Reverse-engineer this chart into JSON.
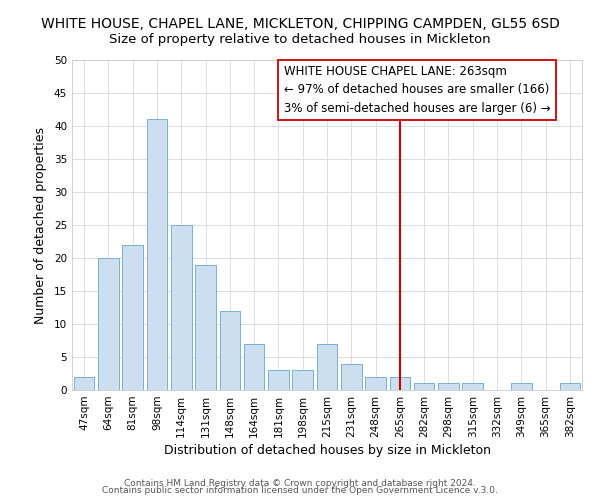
{
  "title": "WHITE HOUSE, CHAPEL LANE, MICKLETON, CHIPPING CAMPDEN, GL55 6SD",
  "subtitle": "Size of property relative to detached houses in Mickleton",
  "xlabel": "Distribution of detached houses by size in Mickleton",
  "ylabel": "Number of detached properties",
  "bar_values": [
    2,
    20,
    22,
    41,
    25,
    19,
    12,
    7,
    3,
    3,
    7,
    4,
    2,
    2,
    1,
    1,
    1,
    0,
    1,
    0,
    1
  ],
  "bin_labels": [
    "47sqm",
    "64sqm",
    "81sqm",
    "98sqm",
    "114sqm",
    "131sqm",
    "148sqm",
    "164sqm",
    "181sqm",
    "198sqm",
    "215sqm",
    "231sqm",
    "248sqm",
    "265sqm",
    "282sqm",
    "298sqm",
    "315sqm",
    "332sqm",
    "349sqm",
    "365sqm",
    "382sqm"
  ],
  "bar_color": "#ccdff0",
  "bar_edge_color": "#7aafd4",
  "ylim": [
    0,
    50
  ],
  "yticks": [
    0,
    5,
    10,
    15,
    20,
    25,
    30,
    35,
    40,
    45,
    50
  ],
  "red_line_index": 13,
  "red_line_color": "#cc0000",
  "legend_title": "WHITE HOUSE CHAPEL LANE: 263sqm",
  "legend_line1": "← 97% of detached houses are smaller (166)",
  "legend_line2": "3% of semi-detached houses are larger (6) →",
  "footer_line1": "Contains HM Land Registry data © Crown copyright and database right 2024.",
  "footer_line2": "Contains public sector information licensed under the Open Government Licence v.3.0.",
  "title_fontsize": 10,
  "subtitle_fontsize": 9.5,
  "axis_label_fontsize": 9,
  "tick_fontsize": 7.5,
  "footer_fontsize": 6.5,
  "legend_fontsize": 8.5
}
